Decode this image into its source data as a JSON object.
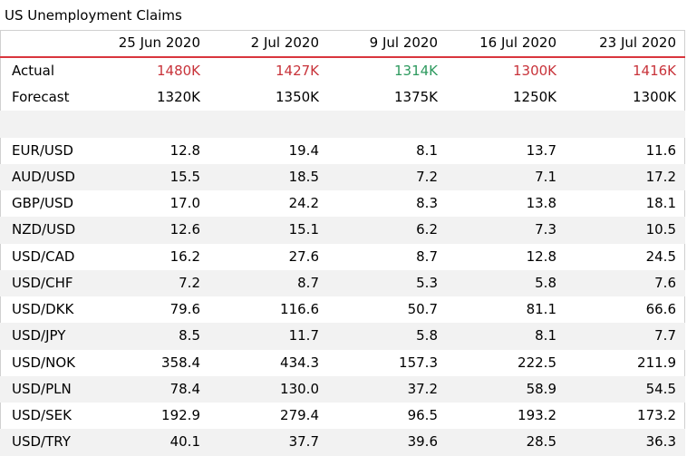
{
  "title": "US Unemployment Claims",
  "colors": {
    "accent_line": "#d9363e",
    "negative": "#c8333a",
    "positive": "#2e9a5f",
    "row_shade": "#f2f2f2"
  },
  "headers": [
    "",
    "25 Jun 2020",
    "2 Jul 2020",
    "9 Jul 2020",
    "16 Jul 2020",
    "23 Jul 2020"
  ],
  "actual": {
    "label": "Actual",
    "values": [
      "1480K",
      "1427K",
      "1314K",
      "1300K",
      "1416K"
    ],
    "tones": [
      "red",
      "red",
      "green",
      "red",
      "red"
    ]
  },
  "forecast": {
    "label": "Forecast",
    "values": [
      "1320K",
      "1350K",
      "1375K",
      "1250K",
      "1300K"
    ]
  },
  "pairs": [
    {
      "label": "EUR/USD",
      "values": [
        "12.8",
        "19.4",
        "8.1",
        "13.7",
        "11.6"
      ]
    },
    {
      "label": "AUD/USD",
      "values": [
        "15.5",
        "18.5",
        "7.2",
        "7.1",
        "17.2"
      ]
    },
    {
      "label": "GBP/USD",
      "values": [
        "17.0",
        "24.2",
        "8.3",
        "13.8",
        "18.1"
      ]
    },
    {
      "label": "NZD/USD",
      "values": [
        "12.6",
        "15.1",
        "6.2",
        "7.3",
        "10.5"
      ]
    },
    {
      "label": "USD/CAD",
      "values": [
        "16.2",
        "27.6",
        "8.7",
        "12.8",
        "24.5"
      ]
    },
    {
      "label": "USD/CHF",
      "values": [
        "7.2",
        "8.7",
        "5.3",
        "5.8",
        "7.6"
      ]
    },
    {
      "label": "USD/DKK",
      "values": [
        "79.6",
        "116.6",
        "50.7",
        "81.1",
        "66.6"
      ]
    },
    {
      "label": "USD/JPY",
      "values": [
        "8.5",
        "11.7",
        "5.8",
        "8.1",
        "7.7"
      ]
    },
    {
      "label": "USD/NOK",
      "values": [
        "358.4",
        "434.3",
        "157.3",
        "222.5",
        "211.9"
      ]
    },
    {
      "label": "USD/PLN",
      "values": [
        "78.4",
        "130.0",
        "37.2",
        "58.9",
        "54.5"
      ]
    },
    {
      "label": "USD/SEK",
      "values": [
        "192.9",
        "279.4",
        "96.5",
        "193.2",
        "173.2"
      ]
    },
    {
      "label": "USD/TRY",
      "values": [
        "40.1",
        "37.7",
        "39.6",
        "28.5",
        "36.3"
      ]
    }
  ]
}
